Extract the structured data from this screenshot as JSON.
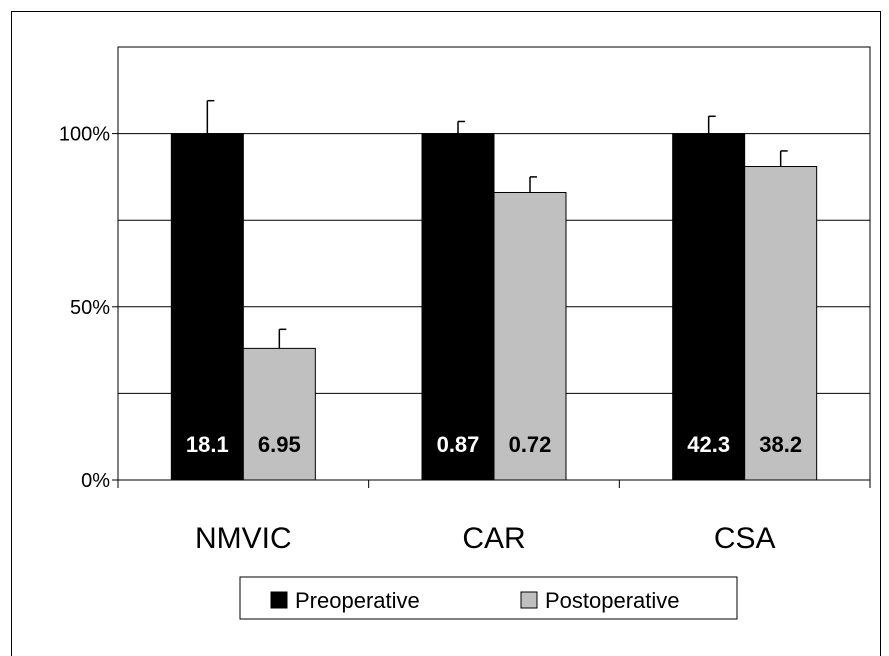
{
  "chart_data": {
    "type": "bar",
    "categories": [
      "NMVIC",
      "CAR",
      "CSA"
    ],
    "series": [
      {
        "name": "Preoperative",
        "color": "#000000",
        "values": [
          100,
          100,
          100
        ],
        "error": [
          9.5,
          3.5,
          5
        ],
        "labels": [
          "18.1",
          "0.87",
          "42.3"
        ],
        "label_color": "#ffffff"
      },
      {
        "name": "Postoperative",
        "color": "#c0c0c0",
        "values": [
          38,
          83,
          90.5
        ],
        "error": [
          5.5,
          4.5,
          4.5
        ],
        "labels": [
          "6.95",
          "0.72",
          "38.2"
        ],
        "label_color": "#000000"
      }
    ],
    "ylim": [
      0,
      125
    ],
    "yticks": [
      0,
      50,
      100
    ],
    "ytick_labels": [
      "0%",
      "50%",
      "100%"
    ],
    "gridlines": [
      25,
      50,
      75,
      100
    ],
    "grid": true,
    "legend_position": "bottom",
    "title": "",
    "xlabel": "",
    "ylabel": ""
  }
}
